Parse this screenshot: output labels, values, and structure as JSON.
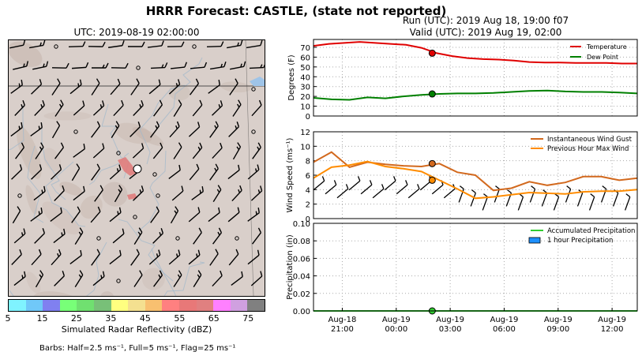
{
  "title": "HRRR Forecast: CASTLE, (state not reported)",
  "run_label": "Run (UTC): 2019 Aug 18, 19:00 f07",
  "valid_label": "Valid (UTC): 2019 Aug 19, 02:00",
  "map": {
    "title": "UTC: 2019-08-19 02:00:00",
    "colorbar": {
      "label": "Simulated Radar Reflectivity (dBZ)",
      "ticks": [
        "5",
        "15",
        "25",
        "35",
        "45",
        "55",
        "65",
        "75"
      ],
      "colors": [
        "#7ff3ff",
        "#70c8f8",
        "#8080f0",
        "#78ff78",
        "#70e070",
        "#78c078",
        "#ffff80",
        "#f4e090",
        "#f8c070",
        "#ff8080",
        "#e87878",
        "#e08080",
        "#ff80ff",
        "#d0a0e0",
        "#808080"
      ]
    },
    "barb_note": "Barbs: Half=2.5 ms⁻¹, Full=5 ms⁻¹, Flag=25 ms⁻¹"
  },
  "chart_data": [
    {
      "type": "line",
      "ylabel": "Degrees (F)",
      "ylim": [
        0,
        78
      ],
      "yticks": [
        0,
        10,
        20,
        30,
        40,
        50,
        60,
        70
      ],
      "x_hours": [
        -2,
        -1.5,
        -1,
        -0.5,
        0,
        0.5,
        1,
        1.5,
        2,
        2.5,
        3,
        3.5,
        4,
        4.5,
        5,
        5.5,
        6,
        6.5,
        7,
        7.5,
        8,
        8.5,
        9,
        9.5,
        10,
        10.5,
        11,
        11.5,
        12,
        12.5,
        13
      ],
      "series": [
        {
          "name": "Temperature",
          "color": "#e00000",
          "values": [
            71.5,
            73.5,
            74.5,
            75.5,
            74.5,
            73.5,
            72.5,
            69.5,
            64,
            61,
            59,
            58,
            57.5,
            56.5,
            55,
            54.5,
            54.5,
            54,
            54,
            54,
            53.5,
            53.5
          ]
        },
        {
          "name": "Dew Point",
          "color": "#008000",
          "values": [
            18.5,
            17,
            16.5,
            19,
            18,
            20,
            21.5,
            22.5,
            23,
            23,
            23.5,
            24.5,
            25.5,
            26,
            25,
            24.5,
            24.5,
            24,
            23
          ]
        }
      ],
      "highlight_hour": 2,
      "legend": "top-right",
      "grid": true
    },
    {
      "type": "line",
      "ylabel": "Wind Speed (ms⁻¹)",
      "ylim": [
        0,
        12
      ],
      "yticks": [
        0,
        2,
        4,
        6,
        8,
        10,
        12
      ],
      "series": [
        {
          "name": "Instantaneous Wind Gust",
          "color": "#d2691e",
          "values": [
            7.8,
            9.2,
            7.1,
            7.8,
            7.5,
            7.3,
            7.2,
            7.6,
            6.4,
            6.0,
            3.9,
            4.2,
            5.1,
            4.6,
            5.0,
            5.8,
            5.8,
            5.3,
            5.6
          ]
        },
        {
          "name": "Previous Hour Max Wind",
          "color": "#ff8c00",
          "values": [
            5.6,
            7.1,
            7.4,
            7.9,
            7.2,
            6.9,
            6.5,
            5.3,
            4.1,
            2.8,
            3.0,
            3.3,
            3.6,
            3.5,
            3.4,
            3.7,
            3.8,
            3.8,
            4.0
          ]
        }
      ],
      "highlight_hour": 2,
      "legend": "top-right",
      "grid": true
    },
    {
      "type": "line",
      "ylabel": "Precipitation (in)",
      "ylim": [
        0,
        0.1
      ],
      "yticks": [
        "0.00",
        "0.02",
        "0.04",
        "0.06",
        "0.08",
        "0.10"
      ],
      "series": [
        {
          "name": "Accumulated Precipitation",
          "color": "#32cd32",
          "values": [
            0,
            0,
            0,
            0,
            0,
            0,
            0,
            0,
            0,
            0,
            0,
            0,
            0,
            0,
            0,
            0,
            0,
            0,
            0
          ]
        },
        {
          "name": "1 hour Precipitation",
          "color": "#1e90ff",
          "values": []
        }
      ],
      "highlight_hour": 2,
      "legend": "top-right",
      "grid": true
    }
  ],
  "x_axis": {
    "ticks": [
      {
        "date": "Aug-18",
        "time": "21:00",
        "hour": -3
      },
      {
        "date": "Aug-19",
        "time": "00:00",
        "hour": 0
      },
      {
        "date": "Aug-19",
        "time": "03:00",
        "hour": 3
      },
      {
        "date": "Aug-19",
        "time": "06:00",
        "hour": 6
      },
      {
        "date": "Aug-19",
        "time": "09:00",
        "hour": 9
      },
      {
        "date": "Aug-19",
        "time": "12:00",
        "hour": 12
      }
    ]
  }
}
